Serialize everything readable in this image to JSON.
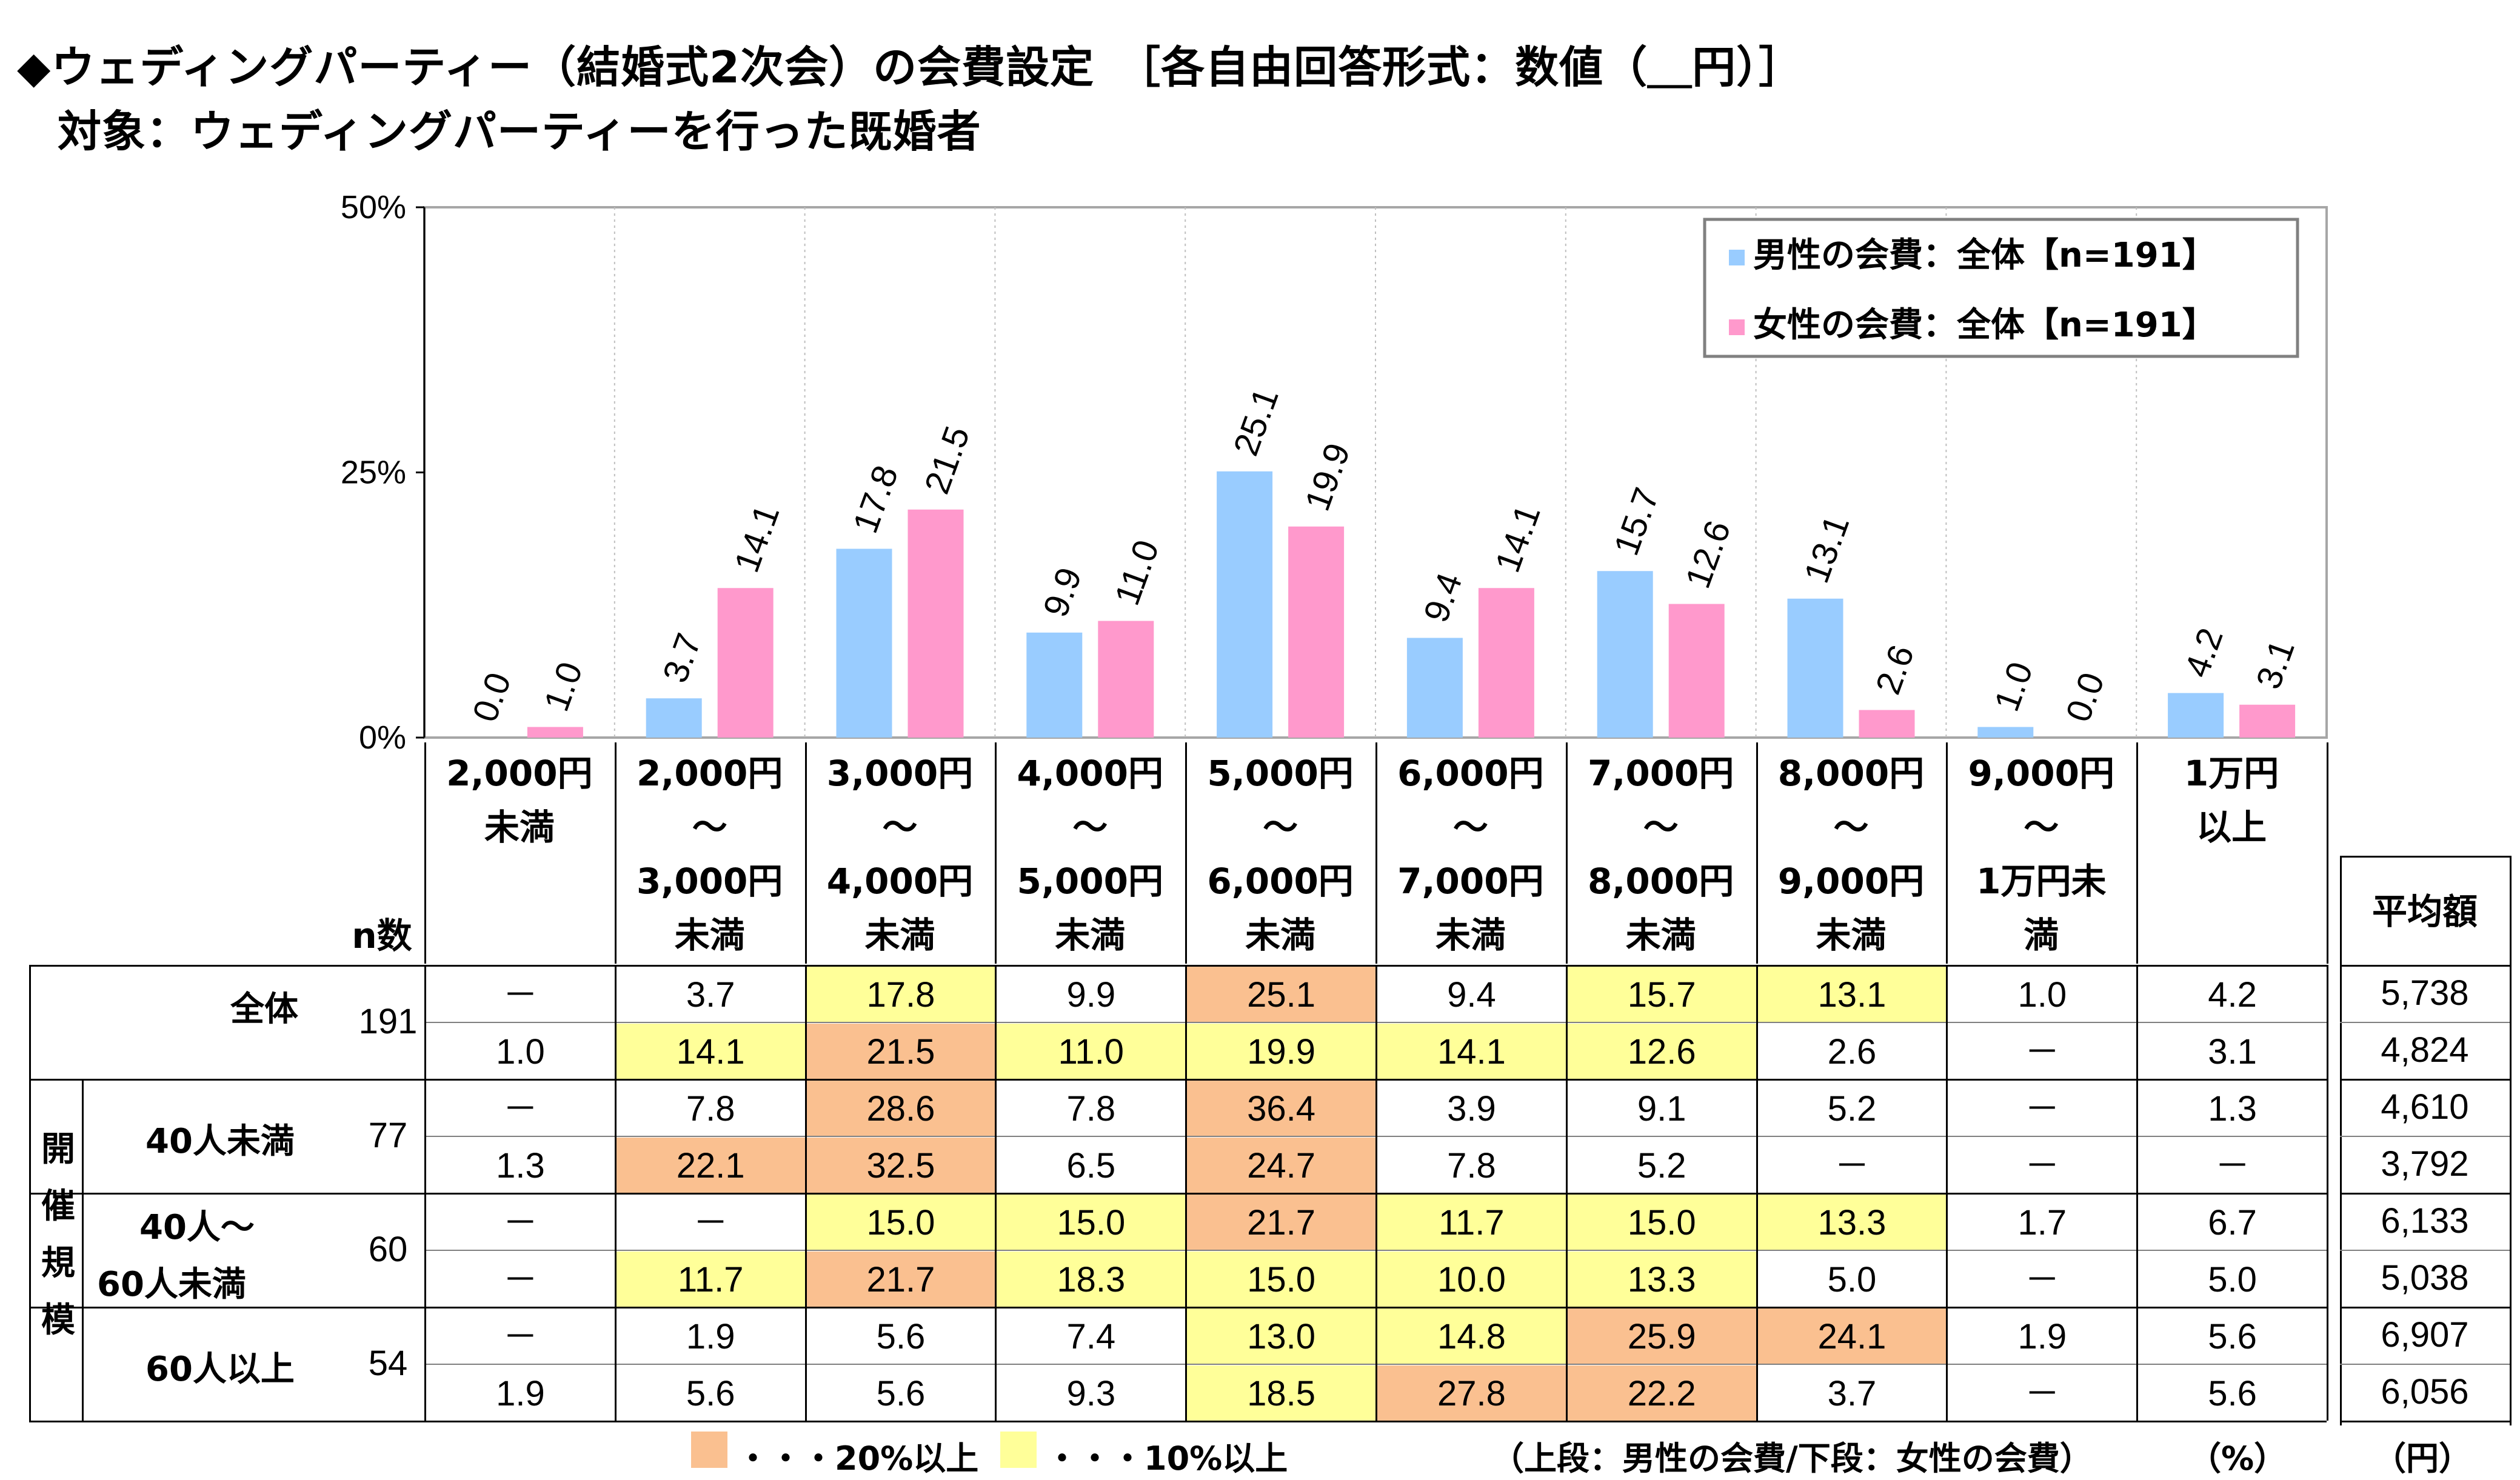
{
  "title_line1": "◆ウェディングパーティー（結婚式2次会）の会費設定　［各自由回答形式：数値（＿円）］",
  "title_line2": "対象：ウェディングパーティーを行った既婚者",
  "chart_data": {
    "type": "bar",
    "categories": [
      "2,000円未満",
      "2,000円～3,000円未満",
      "3,000円～4,000円未満",
      "4,000円～5,000円未満",
      "5,000円～6,000円未満",
      "6,000円～7,000円未満",
      "7,000円～8,000円未満",
      "8,000円～9,000円未満",
      "9,000円～1万円未満",
      "1万円以上"
    ],
    "series": [
      {
        "name": "男性の会費：全体【n=191】",
        "color": "#99ccff",
        "values": [
          0.0,
          3.7,
          17.8,
          9.9,
          25.1,
          9.4,
          15.7,
          13.1,
          1.0,
          4.2
        ],
        "labels": [
          "0.0",
          "3.7",
          "17.8",
          "9.9",
          "25.1",
          "9.4",
          "15.7",
          "13.1",
          "1.0",
          "4.2"
        ]
      },
      {
        "name": "女性の会費：全体【n=191】",
        "color": "#ff99cc",
        "values": [
          1.0,
          14.1,
          21.5,
          11.0,
          19.9,
          14.1,
          12.6,
          2.6,
          0.0,
          3.1
        ],
        "labels": [
          "1.0",
          "14.1",
          "21.5",
          "11.0",
          "19.9",
          "14.1",
          "12.6",
          "2.6",
          "0.0",
          "3.1"
        ]
      }
    ],
    "yticks": [
      "0%",
      "25%",
      "50%"
    ],
    "ylim": [
      0,
      50
    ],
    "grid": true,
    "legend_position": "top-right"
  },
  "table": {
    "headers": [
      "2,000円\n未満",
      "2,000円\n～\n3,000円\n未満",
      "3,000円\n～\n4,000円\n未満",
      "4,000円\n～\n5,000円\n未満",
      "5,000円\n～\n6,000円\n未満",
      "6,000円\n～\n7,000円\n未満",
      "7,000円\n～\n8,000円\n未満",
      "8,000円\n～\n9,000円\n未満",
      "9,000円\n～\n1万円未\n満",
      "1万円\n以上"
    ],
    "n_header": "n数",
    "avg_header": "平均額",
    "group_label": "開催規模",
    "groups": [
      {
        "label": "全体",
        "label2": "",
        "n": "191",
        "rows": [
          {
            "values": [
              "－",
              "3.7",
              "17.8",
              "9.9",
              "25.1",
              "9.4",
              "15.7",
              "13.1",
              "1.0",
              "4.2"
            ],
            "avg": "5,738"
          },
          {
            "values": [
              "1.0",
              "14.1",
              "21.5",
              "11.0",
              "19.9",
              "14.1",
              "12.6",
              "2.6",
              "－",
              "3.1"
            ],
            "avg": "4,824"
          }
        ]
      },
      {
        "label": "40人未満",
        "label2": "",
        "n": "77",
        "rows": [
          {
            "values": [
              "－",
              "7.8",
              "28.6",
              "7.8",
              "36.4",
              "3.9",
              "9.1",
              "5.2",
              "－",
              "1.3"
            ],
            "avg": "4,610"
          },
          {
            "values": [
              "1.3",
              "22.1",
              "32.5",
              "6.5",
              "24.7",
              "7.8",
              "5.2",
              "－",
              "－",
              "－"
            ],
            "avg": "3,792"
          }
        ]
      },
      {
        "label": "40人～",
        "label2": "60人未満",
        "n": "60",
        "rows": [
          {
            "values": [
              "－",
              "－",
              "15.0",
              "15.0",
              "21.7",
              "11.7",
              "15.0",
              "13.3",
              "1.7",
              "6.7"
            ],
            "avg": "6,133"
          },
          {
            "values": [
              "－",
              "11.7",
              "21.7",
              "18.3",
              "15.0",
              "10.0",
              "13.3",
              "5.0",
              "－",
              "5.0"
            ],
            "avg": "5,038"
          }
        ]
      },
      {
        "label": "60人以上",
        "label2": "",
        "n": "54",
        "rows": [
          {
            "values": [
              "－",
              "1.9",
              "5.6",
              "7.4",
              "13.0",
              "14.8",
              "25.9",
              "24.1",
              "1.9",
              "5.6"
            ],
            "avg": "6,907"
          },
          {
            "values": [
              "1.9",
              "5.6",
              "5.6",
              "9.3",
              "18.5",
              "27.8",
              "22.2",
              "3.7",
              "－",
              "5.6"
            ],
            "avg": "6,056"
          }
        ]
      }
    ],
    "highlight_colors": {
      "over20": "#fac090",
      "over10": "#ffff99"
    }
  },
  "footer": {
    "legend_20": "・・・20%以上",
    "legend_10": "・・・10%以上",
    "note": "（上段：男性の会費/下段：女性の会費）",
    "unit_pct": "（%）",
    "unit_yen": "（円）"
  }
}
